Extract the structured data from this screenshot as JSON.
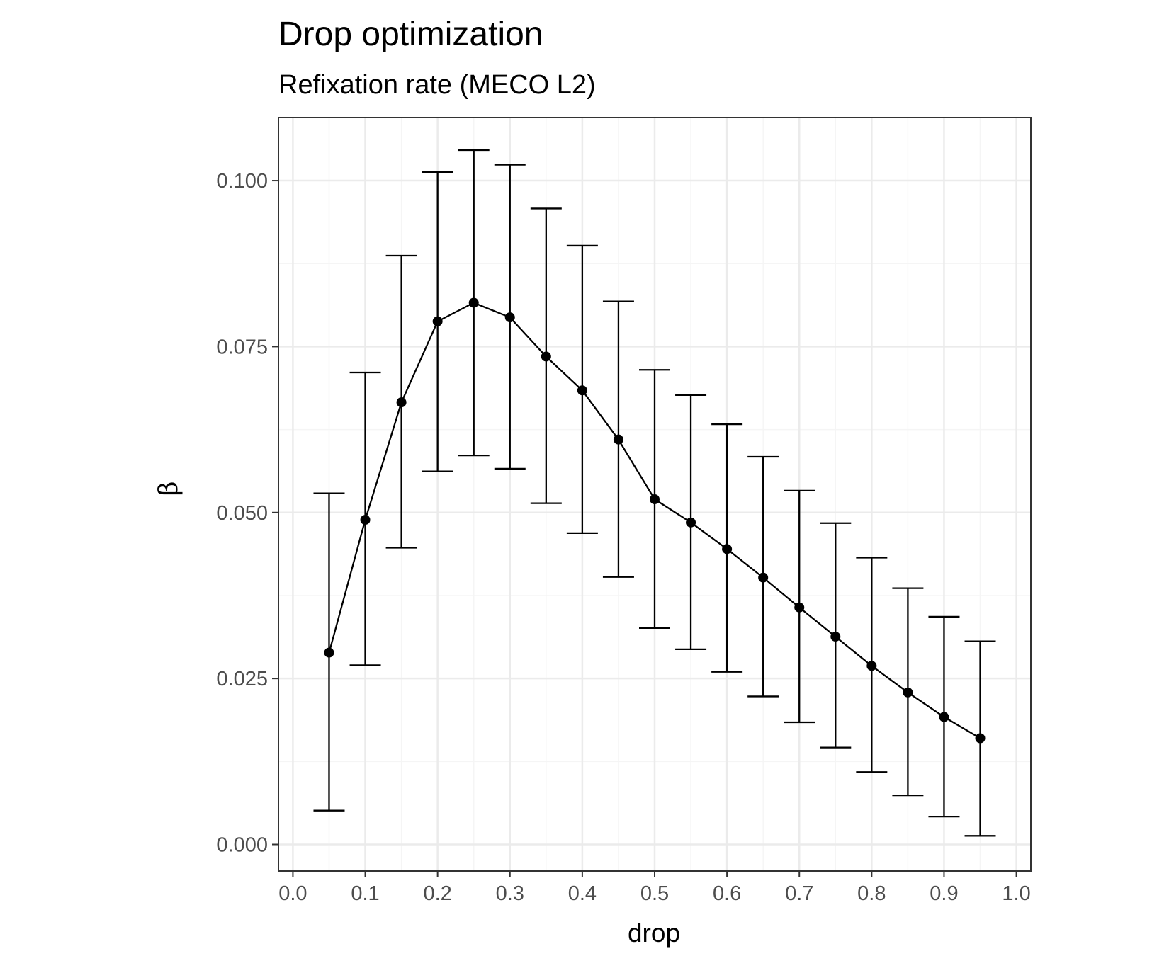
{
  "chart_data": {
    "type": "line",
    "title": "Drop optimization",
    "subtitle": "Refixation rate (MECO L2)",
    "xlabel": "drop",
    "ylabel": "β",
    "xlim": [
      -0.02,
      1.02
    ],
    "ylim": [
      -0.004,
      0.1095
    ],
    "x_ticks": [
      "0.0",
      "0.1",
      "0.2",
      "0.3",
      "0.4",
      "0.5",
      "0.6",
      "0.7",
      "0.8",
      "0.9",
      "1.0"
    ],
    "y_ticks": [
      "0.000",
      "0.025",
      "0.050",
      "0.075",
      "0.100"
    ],
    "grid": true,
    "theme": "black-and-white",
    "series": [
      {
        "x": [
          0.05,
          0.1,
          0.15,
          0.2,
          0.25,
          0.3,
          0.35,
          0.4,
          0.45,
          0.5,
          0.55,
          0.6,
          0.65,
          0.7,
          0.75,
          0.8,
          0.85,
          0.9,
          0.95
        ],
        "y": [
          0.0289,
          0.0489,
          0.0666,
          0.0788,
          0.0816,
          0.0794,
          0.0735,
          0.0684,
          0.061,
          0.052,
          0.0485,
          0.0445,
          0.0402,
          0.0357,
          0.0313,
          0.0269,
          0.0229,
          0.0192,
          0.016
        ],
        "ymin": [
          0.0051,
          0.027,
          0.0447,
          0.0562,
          0.0586,
          0.0566,
          0.0514,
          0.0469,
          0.0403,
          0.0326,
          0.0294,
          0.026,
          0.0223,
          0.0184,
          0.0146,
          0.0109,
          0.0074,
          0.0042,
          0.0013
        ],
        "ymax": [
          0.0529,
          0.0711,
          0.0887,
          0.1013,
          0.1046,
          0.1024,
          0.0958,
          0.0902,
          0.0818,
          0.0715,
          0.0677,
          0.0633,
          0.0584,
          0.0533,
          0.0484,
          0.0432,
          0.0386,
          0.0343,
          0.0306
        ]
      }
    ],
    "colors": {
      "line": "#000000",
      "panel_border": "#333333",
      "grid_major": "#ebebeb",
      "grid_minor": "#f5f5f5",
      "tick_label": "#4d4d4d"
    }
  }
}
